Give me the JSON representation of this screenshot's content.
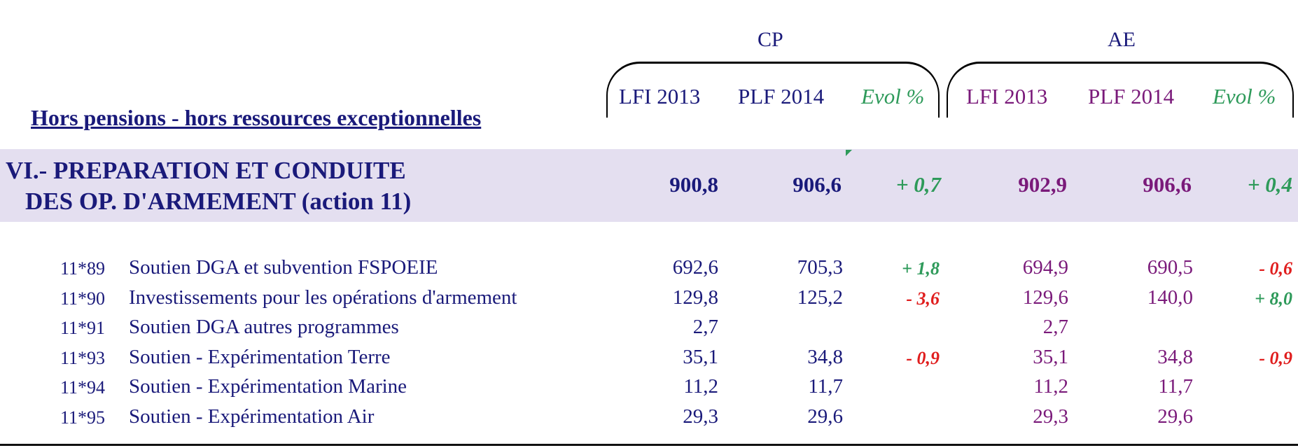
{
  "groups": {
    "cp": "CP",
    "ae": "AE"
  },
  "columns": {
    "cp_lfi": "LFI 2013",
    "cp_plf": "PLF 2014",
    "cp_evol": "Evol %",
    "ae_lfi": "LFI 2013",
    "ae_plf": "PLF 2014",
    "ae_evol": "Evol %"
  },
  "title": "Hors pensions - hors ressources exceptionnelles",
  "section": {
    "line1": "VI.- PREPARATION ET CONDUITE",
    "line2": "DES OP. D'ARMEMENT  (action 11)",
    "cp_lfi": "900,8",
    "cp_plf": "906,6",
    "cp_evol": "+ 0,7",
    "ae_lfi": "902,9",
    "ae_plf": "906,6",
    "ae_evol": "+ 0,4"
  },
  "rows": [
    {
      "code": "11*89",
      "label": "Soutien DGA et subvention FSPOEIE",
      "cp_lfi": "692,6",
      "cp_plf": "705,3",
      "cp_evol": "+ 1,8",
      "ae_lfi": "694,9",
      "ae_plf": "690,5",
      "ae_evol": "- 0,6"
    },
    {
      "code": "11*90",
      "label": "Investissements pour les opérations d'armement",
      "cp_lfi": "129,8",
      "cp_plf": "125,2",
      "cp_evol": "- 3,6",
      "ae_lfi": "129,6",
      "ae_plf": "140,0",
      "ae_evol": "+ 8,0"
    },
    {
      "code": "11*91",
      "label": "Soutien DGA  autres programmes",
      "cp_lfi": "2,7",
      "cp_plf": "",
      "cp_evol": "",
      "ae_lfi": "2,7",
      "ae_plf": "",
      "ae_evol": ""
    },
    {
      "code": "11*93",
      "label": "Soutien - Expérimentation Terre",
      "cp_lfi": "35,1",
      "cp_plf": "34,8",
      "cp_evol": "- 0,9",
      "ae_lfi": "35,1",
      "ae_plf": "34,8",
      "ae_evol": "- 0,9"
    },
    {
      "code": "11*94",
      "label": "Soutien - Expérimentation Marine",
      "cp_lfi": "11,2",
      "cp_plf": "11,7",
      "cp_evol": "",
      "ae_lfi": "11,2",
      "ae_plf": "11,7",
      "ae_evol": ""
    },
    {
      "code": "11*95",
      "label": "Soutien - Expérimentation Air",
      "cp_lfi": "29,3",
      "cp_plf": "29,6",
      "cp_evol": "",
      "ae_lfi": "29,3",
      "ae_plf": "29,6",
      "ae_evol": ""
    }
  ],
  "colors": {
    "cp": "#1a1a7a",
    "ae": "#7a1a7a",
    "evol": "#2e9a5a",
    "negative": "#e01e1e",
    "band": "#e4dff0"
  }
}
